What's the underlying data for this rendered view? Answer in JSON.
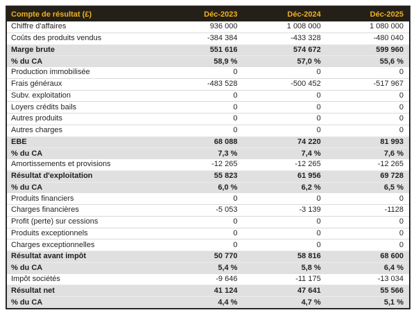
{
  "table": {
    "title": "Compte de résultat (£)",
    "columns": [
      "Déc-2023",
      "Déc-2024",
      "Déc-2025"
    ],
    "rows": [
      {
        "label": "Chiffre d'affaires",
        "values": [
          "936 000",
          "1 008 000",
          "1 080 000"
        ],
        "type": "normal"
      },
      {
        "label": "Coûts des produits vendus",
        "values": [
          "-384 384",
          "-433 328",
          "-480 040"
        ],
        "type": "normal"
      },
      {
        "label": "Marge brute",
        "values": [
          "551 616",
          "574 672",
          "599 960"
        ],
        "type": "highlight"
      },
      {
        "label": "% du CA",
        "values": [
          "58,9 %",
          "57,0 %",
          "55,6 %"
        ],
        "type": "highlight"
      },
      {
        "label": "Production immobilisée",
        "values": [
          "0",
          "0",
          "0"
        ],
        "type": "normal"
      },
      {
        "label": "Frais généraux",
        "values": [
          "-483 528",
          "-500 452",
          "-517 967"
        ],
        "type": "normal"
      },
      {
        "label": "Subv. exploitation",
        "values": [
          "0",
          "0",
          "0"
        ],
        "type": "normal"
      },
      {
        "label": "Loyers crédits bails",
        "values": [
          "0",
          "0",
          "0"
        ],
        "type": "normal"
      },
      {
        "label": "Autres produits",
        "values": [
          "0",
          "0",
          "0"
        ],
        "type": "normal"
      },
      {
        "label": "Autres charges",
        "values": [
          "0",
          "0",
          "0"
        ],
        "type": "normal"
      },
      {
        "label": "EBE",
        "values": [
          "68 088",
          "74 220",
          "81 993"
        ],
        "type": "highlight"
      },
      {
        "label": "% du CA",
        "values": [
          "7,3 %",
          "7,4 %",
          "7,6 %"
        ],
        "type": "highlight"
      },
      {
        "label": "Amortissements et provisions",
        "values": [
          "-12 265",
          "-12 265",
          "-12 265"
        ],
        "type": "normal"
      },
      {
        "label": "Résultat d'exploitation",
        "values": [
          "55 823",
          "61 956",
          "69 728"
        ],
        "type": "highlight"
      },
      {
        "label": "% du CA",
        "values": [
          "6,0 %",
          "6,2 %",
          "6,5 %"
        ],
        "type": "highlight"
      },
      {
        "label": "Produits financiers",
        "values": [
          "0",
          "0",
          "0"
        ],
        "type": "normal"
      },
      {
        "label": "Charges financières",
        "values": [
          "-5 053",
          "-3 139",
          "-1128"
        ],
        "type": "normal"
      },
      {
        "label": "Profit (perte) sur cessions",
        "values": [
          "0",
          "0",
          "0"
        ],
        "type": "normal"
      },
      {
        "label": "Produits exceptionnels",
        "values": [
          "0",
          "0",
          "0"
        ],
        "type": "normal"
      },
      {
        "label": "Charges exceptionnelles",
        "values": [
          "0",
          "0",
          "0"
        ],
        "type": "normal"
      },
      {
        "label": "Résultat avant impôt",
        "values": [
          "50 770",
          "58 816",
          "68 600"
        ],
        "type": "highlight"
      },
      {
        "label": "% du CA",
        "values": [
          "5,4 %",
          "5,8 %",
          "6,4 %"
        ],
        "type": "highlight"
      },
      {
        "label": "Impôt sociétés",
        "values": [
          "-9 646",
          "-11 175",
          "-13 034"
        ],
        "type": "normal"
      },
      {
        "label": "Résultat net",
        "values": [
          "41 124",
          "47 641",
          "55 566"
        ],
        "type": "highlight"
      },
      {
        "label": "% du CA",
        "values": [
          "4,4 %",
          "4,7 %",
          "5,1 %"
        ],
        "type": "highlight"
      }
    ],
    "colors": {
      "header_bg": "#242019",
      "header_text": "#f0b01e",
      "highlight_row_bg": "#e0e0e0",
      "outer_border": "#2a2621",
      "body_text": "#1f1f1f"
    }
  }
}
